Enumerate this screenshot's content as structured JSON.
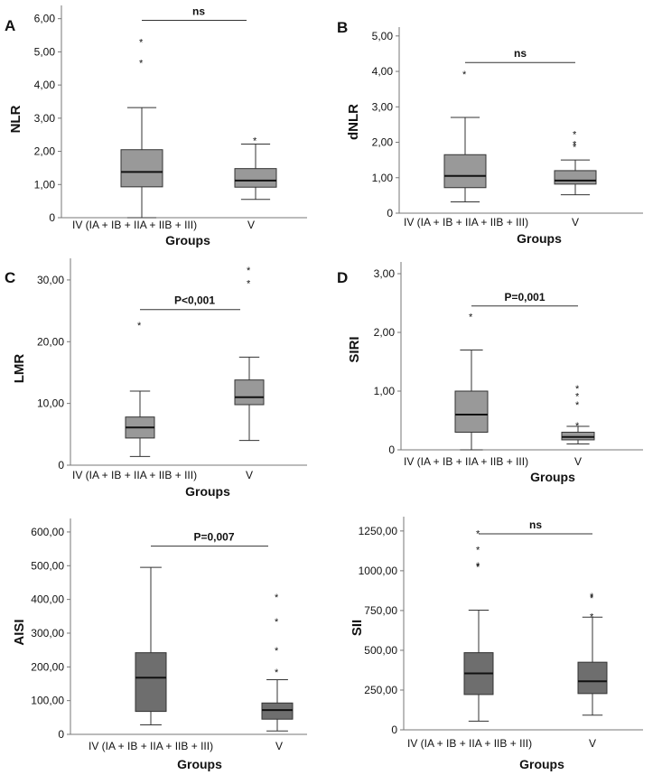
{
  "figure": {
    "panel_count": 6
  },
  "chart_data": [
    {
      "panel": "A",
      "type": "box",
      "ylabel": "NLR",
      "xlabel": "Groups",
      "categories": [
        "IV (IA + IB + IIA + IIB + III)",
        "V"
      ],
      "yticks": [
        "0",
        "1,00",
        "2,00",
        "3,00",
        "4,00",
        "5,00",
        "6,00"
      ],
      "ylim": [
        0,
        6.4
      ],
      "boxes": [
        {
          "whisker_low": 0.0,
          "q1": 0.93,
          "median": 1.38,
          "q3": 2.05,
          "whisker_high": 3.32,
          "outliers": [
            4.72,
            5.35
          ]
        },
        {
          "whisker_low": 0.55,
          "q1": 0.92,
          "median": 1.12,
          "q3": 1.48,
          "whisker_high": 2.22,
          "outliers": [
            2.38
          ]
        }
      ],
      "significance": "ns",
      "sig_y": 5.95,
      "box_color": "#999999"
    },
    {
      "panel": "B",
      "type": "box",
      "ylabel": "dNLR",
      "xlabel": "Groups",
      "categories": [
        "IV (IA + IB + IIA + IIB + III)",
        "V"
      ],
      "yticks": [
        "0",
        "1,00",
        "2,00",
        "3,00",
        "4,00",
        "5,00"
      ],
      "ylim": [
        0,
        5.25
      ],
      "boxes": [
        {
          "whisker_low": 0.32,
          "q1": 0.72,
          "median": 1.05,
          "q3": 1.65,
          "whisker_high": 2.7,
          "outliers": [
            3.98
          ]
        },
        {
          "whisker_low": 0.52,
          "q1": 0.82,
          "median": 0.92,
          "q3": 1.2,
          "whisker_high": 1.5,
          "outliers": [
            1.92,
            2.0,
            2.28
          ]
        }
      ],
      "significance": "ns",
      "sig_y": 4.25,
      "box_color": "#999999"
    },
    {
      "panel": "C",
      "type": "box",
      "ylabel": "LMR",
      "xlabel": "Groups",
      "categories": [
        "IV (IA + IB + IIA + IIB + III)",
        "V"
      ],
      "yticks": [
        "0",
        "10,00",
        "20,00",
        "30,00"
      ],
      "ylim": [
        0,
        33.5
      ],
      "boxes": [
        {
          "whisker_low": 1.4,
          "q1": 4.4,
          "median": 6.1,
          "q3": 7.8,
          "whisker_high": 12.0,
          "outliers": [
            23.0
          ]
        },
        {
          "whisker_low": 4.0,
          "q1": 9.8,
          "median": 11.0,
          "q3": 13.8,
          "whisker_high": 17.5,
          "outliers": [
            29.8,
            31.9
          ]
        }
      ],
      "significance": "P<0,001",
      "sig_y": 25.2,
      "box_color": "#999999"
    },
    {
      "panel": "D",
      "type": "box",
      "ylabel": "SIRI",
      "xlabel": "Groups",
      "categories": [
        "IV (IA + IB + IIA + IIB + III)",
        "V"
      ],
      "yticks": [
        "0",
        "1,00",
        "2,00",
        "3,00"
      ],
      "ylim": [
        0,
        3.2
      ],
      "boxes": [
        {
          "whisker_low": 0.0,
          "q1": 0.3,
          "median": 0.6,
          "q3": 1.0,
          "whisker_high": 1.7,
          "outliers": [
            2.3
          ]
        },
        {
          "whisker_low": 0.1,
          "q1": 0.17,
          "median": 0.22,
          "q3": 0.3,
          "whisker_high": 0.4,
          "outliers": [
            0.45,
            0.8,
            0.95,
            1.08
          ]
        }
      ],
      "significance": "P=0,001",
      "sig_y": 2.45,
      "box_color": "#999999"
    },
    {
      "panel": "",
      "type": "box",
      "ylabel": "AISI",
      "xlabel": "Groups",
      "categories": [
        "IV (IA + IB + IIA + IIB + III)",
        "V"
      ],
      "yticks": [
        "0",
        "100,00",
        "200,00",
        "300,00",
        "400,00",
        "500,00",
        "600,00"
      ],
      "ylim": [
        0,
        640
      ],
      "boxes": [
        {
          "whisker_low": 28,
          "q1": 68,
          "median": 168,
          "q3": 242,
          "whisker_high": 495,
          "outliers": []
        },
        {
          "whisker_low": 10,
          "q1": 45,
          "median": 72,
          "q3": 93,
          "whisker_high": 162,
          "outliers": [
            190,
            255,
            340,
            412
          ]
        }
      ],
      "significance": "P=0,007",
      "sig_y": 558,
      "box_color": "#6e6e6e"
    },
    {
      "panel": "",
      "type": "box",
      "ylabel": "SII",
      "xlabel": "Groups",
      "categories": [
        "IV (IA + IB + IIA + IIB + III)",
        "V"
      ],
      "yticks": [
        "0",
        "250,00",
        "500,00",
        "750,00",
        "1000,00",
        "1250,00"
      ],
      "ylim": [
        0,
        1340
      ],
      "boxes": [
        {
          "whisker_low": 55,
          "q1": 222,
          "median": 355,
          "q3": 485,
          "whisker_high": 752,
          "outliers": [
            1035,
            1045,
            1145,
            1245
          ]
        },
        {
          "whisker_low": 92,
          "q1": 228,
          "median": 305,
          "q3": 425,
          "whisker_high": 708,
          "outliers": [
            725,
            840,
            852
          ]
        }
      ],
      "significance": "ns",
      "sig_y": 1232,
      "box_color": "#6e6e6e"
    }
  ]
}
